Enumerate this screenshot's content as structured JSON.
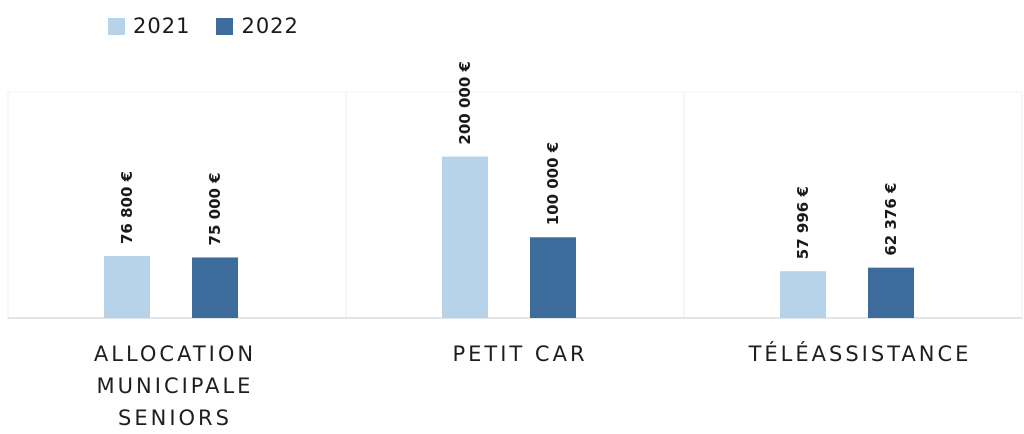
{
  "legend": {
    "items": [
      {
        "label": "2021",
        "color": "#b7d3ea"
      },
      {
        "label": "2022",
        "color": "#3d6b9c"
      }
    ]
  },
  "chart_data": {
    "type": "bar",
    "categories": [
      "ALLOCATION\nMUNICIPALE SENIORS",
      "PETIT CAR",
      "TÉLÉASSISTANCE"
    ],
    "series": [
      {
        "name": "2021",
        "color": "#b7d3ea",
        "values": [
          76800,
          200000,
          57996
        ],
        "labels": [
          "76 800 €",
          "200 000 €",
          "57 996 €"
        ]
      },
      {
        "name": "2022",
        "color": "#3d6b9c",
        "values": [
          75000,
          100000,
          62376
        ],
        "labels": [
          "75 000 €",
          "100 000 €",
          "62 376 €"
        ]
      }
    ],
    "legend_position": "top-left",
    "grid": false,
    "ylim": [
      0,
      280000
    ],
    "title": "",
    "xlabel": "",
    "ylabel": ""
  }
}
